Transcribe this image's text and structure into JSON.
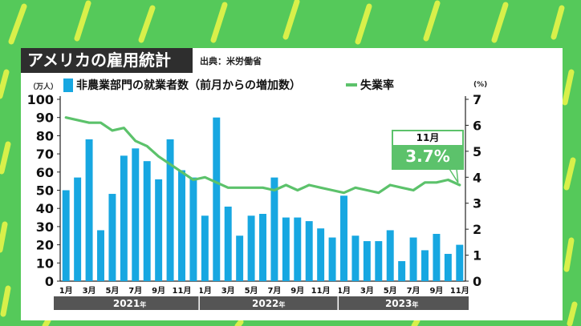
{
  "title": "アメリカの雇用統計",
  "source": "出典：米労働省",
  "colors": {
    "background": "#55c95a",
    "stripe": "#d8f04a",
    "bar": "#17a7e1",
    "line": "#5cc26b",
    "year_band": "#555555"
  },
  "callout": {
    "month": "11月",
    "value": "3.7%"
  },
  "chart_data": {
    "type": "bar",
    "title": "アメリカの雇用統計",
    "legend": [
      "非農業部門の就業者数（前月からの増加数）",
      "失業率"
    ],
    "left_axis": {
      "unit": "（万人）",
      "range": [
        0,
        100
      ],
      "ticks": [
        0,
        10,
        20,
        30,
        40,
        50,
        60,
        70,
        80,
        90,
        100
      ]
    },
    "right_axis": {
      "unit": "(%)",
      "range": [
        0,
        7
      ],
      "ticks": [
        0,
        1,
        2,
        3,
        4,
        5,
        6,
        7
      ]
    },
    "month_labels": [
      "1月",
      "3月",
      "5月",
      "7月",
      "9月",
      "11月",
      "1月",
      "3月",
      "5月",
      "7月",
      "9月",
      "11月",
      "1月",
      "3月",
      "5月",
      "7月",
      "9月",
      "11月"
    ],
    "years": [
      {
        "label": "2021",
        "suffix": "年"
      },
      {
        "label": "2022",
        "suffix": "年"
      },
      {
        "label": "2023",
        "suffix": "年"
      }
    ],
    "series": [
      {
        "name": "非農業部門の就業者数（前月からの増加数）",
        "kind": "bar",
        "axis": "left",
        "values": [
          50,
          57,
          78,
          28,
          48,
          69,
          73,
          66,
          56,
          78,
          61,
          57,
          36,
          90,
          41,
          25,
          36,
          37,
          57,
          35,
          35,
          33,
          29,
          24,
          47,
          25,
          22,
          22,
          28,
          11,
          24,
          17,
          26,
          15,
          20
        ]
      },
      {
        "name": "失業率",
        "kind": "line",
        "axis": "right",
        "values": [
          6.3,
          6.2,
          6.1,
          6.1,
          5.8,
          5.9,
          5.4,
          5.2,
          4.8,
          4.5,
          4.2,
          3.9,
          4.0,
          3.8,
          3.6,
          3.6,
          3.6,
          3.6,
          3.5,
          3.7,
          3.5,
          3.7,
          3.6,
          3.5,
          3.4,
          3.6,
          3.5,
          3.4,
          3.7,
          3.6,
          3.5,
          3.8,
          3.8,
          3.9,
          3.7
        ]
      }
    ]
  }
}
